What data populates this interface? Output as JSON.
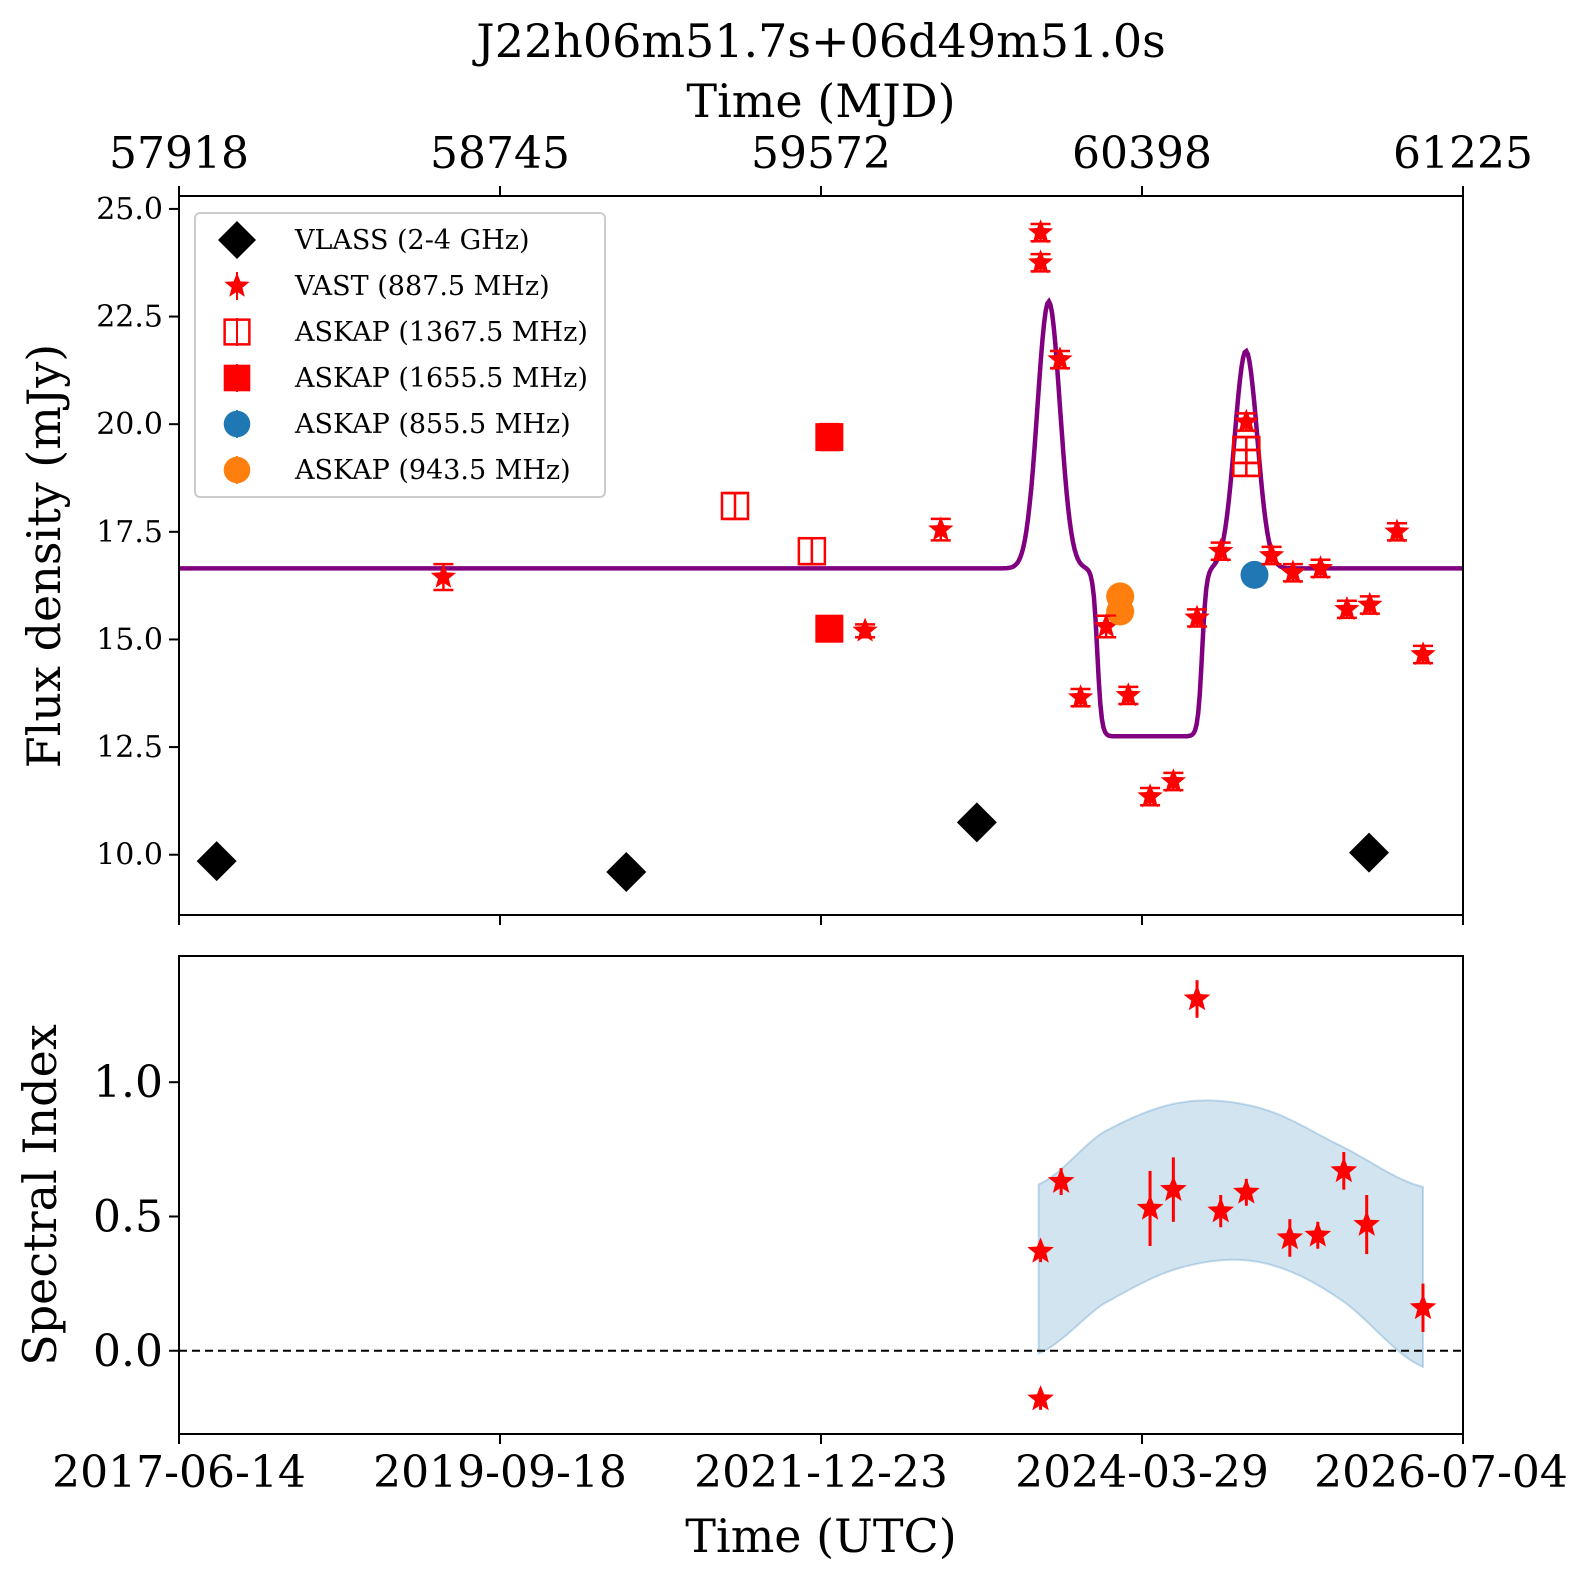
{
  "figure": {
    "title": "J22h06m51.7s+06d49m51.0s",
    "top_axis_label": "Time (MJD)",
    "top_ticks": [
      "57918",
      "58745",
      "59572",
      "60398",
      "61225"
    ],
    "bottom_axis_label": "Time (UTC)",
    "bottom_ticks": [
      "2017-06-14",
      "2019-09-18",
      "2021-12-23",
      "2024-03-29",
      "2026-07-04"
    ]
  },
  "chart_data": [
    {
      "type": "scatter",
      "panel": "top",
      "ylabel": "Flux density (mJy)",
      "xlabel": "Time (MJD)",
      "xlim": [
        57918,
        61225
      ],
      "ylim": [
        8.6,
        25.3
      ],
      "yticks": [
        "10.0",
        "12.5",
        "15.0",
        "17.5",
        "20.0",
        "22.5",
        "25.0"
      ],
      "legend": {
        "position": "top-left",
        "entries": [
          {
            "label": "VLASS (2-4 GHz)",
            "marker": "diamond",
            "color": "#000000"
          },
          {
            "label": "VAST (887.5 MHz)",
            "marker": "star",
            "color": "#ff0000"
          },
          {
            "label": "ASKAP (1367.5 MHz)",
            "marker": "open-square",
            "color": "#ff0000"
          },
          {
            "label": "ASKAP (1655.5 MHz)",
            "marker": "square",
            "color": "#ff0000"
          },
          {
            "label": "ASKAP (855.5 MHz)",
            "marker": "circle",
            "color": "#1f77b4"
          },
          {
            "label": "ASKAP (943.5 MHz)",
            "marker": "circle",
            "color": "#ff7f0e"
          }
        ]
      },
      "series": [
        {
          "name": "VLASS (2-4 GHz)",
          "marker": "diamond",
          "color": "#000000",
          "points": [
            {
              "x": 58015,
              "y": 9.85
            },
            {
              "x": 59070,
              "y": 9.6
            },
            {
              "x": 59973,
              "y": 10.75
            },
            {
              "x": 60983,
              "y": 10.05
            }
          ]
        },
        {
          "name": "VAST (887.5 MHz)",
          "marker": "star",
          "color": "#ff0000",
          "points": [
            {
              "x": 58599,
              "y": 16.45,
              "err": 0.3
            },
            {
              "x": 59685,
              "y": 15.2,
              "err": 0.15
            },
            {
              "x": 59880,
              "y": 17.55,
              "err": 0.25
            },
            {
              "x": 60137,
              "y": 24.45,
              "err": 0.2
            },
            {
              "x": 60137,
              "y": 23.75,
              "err": 0.2
            },
            {
              "x": 60187,
              "y": 21.5,
              "err": 0.2
            },
            {
              "x": 60240,
              "y": 13.65,
              "err": 0.2
            },
            {
              "x": 60306,
              "y": 15.3,
              "err": 0.25
            },
            {
              "x": 60363,
              "y": 13.7,
              "err": 0.2
            },
            {
              "x": 60419,
              "y": 11.35,
              "err": 0.2
            },
            {
              "x": 60479,
              "y": 11.7,
              "err": 0.2
            },
            {
              "x": 60540,
              "y": 15.5,
              "err": 0.2
            },
            {
              "x": 60601,
              "y": 17.05,
              "err": 0.2
            },
            {
              "x": 60667,
              "y": 20.05,
              "err": 0.2
            },
            {
              "x": 60732,
              "y": 16.95,
              "err": 0.2
            },
            {
              "x": 60787,
              "y": 16.55,
              "err": 0.2
            },
            {
              "x": 60858,
              "y": 16.65,
              "err": 0.2
            },
            {
              "x": 60926,
              "y": 15.7,
              "err": 0.2
            },
            {
              "x": 60985,
              "y": 15.8,
              "err": 0.2
            },
            {
              "x": 61055,
              "y": 17.5,
              "err": 0.2
            },
            {
              "x": 61122,
              "y": 14.65,
              "err": 0.2
            }
          ]
        },
        {
          "name": "ASKAP (1367.5 MHz)",
          "marker": "open-square",
          "color": "#ff0000",
          "points": [
            {
              "x": 59350,
              "y": 18.1,
              "err": 0.3
            },
            {
              "x": 59548,
              "y": 17.05,
              "err": 0.3
            },
            {
              "x": 60667,
              "y": 19.4,
              "err": 0.3
            },
            {
              "x": 60667,
              "y": 19.1,
              "err": 0.3
            }
          ]
        },
        {
          "name": "ASKAP (1655.5 MHz)",
          "marker": "square",
          "color": "#ff0000",
          "points": [
            {
              "x": 59593,
              "y": 19.7,
              "err": 0.3
            },
            {
              "x": 59593,
              "y": 15.25,
              "err": 0.2
            }
          ]
        },
        {
          "name": "ASKAP (855.5 MHz)",
          "marker": "circle",
          "color": "#1f77b4",
          "points": [
            {
              "x": 60688,
              "y": 16.5,
              "err": 0.15
            }
          ]
        },
        {
          "name": "ASKAP (943.5 MHz)",
          "marker": "circle",
          "color": "#ff7f0e",
          "points": [
            {
              "x": 60342,
              "y": 15.65,
              "err": 0.15
            },
            {
              "x": 60342,
              "y": 16.0,
              "err": 0.15
            }
          ]
        }
      ],
      "model_curve": {
        "color": "#800080",
        "baseline": 16.65,
        "components": [
          {
            "center": 60158,
            "width": 29,
            "amplitude": 6.2
          },
          {
            "center": 60666,
            "width": 29,
            "amplitude": 5.05
          },
          {
            "center": 60418,
            "half_width": 135,
            "edge": 22,
            "amplitude": -3.9
          }
        ]
      }
    },
    {
      "type": "scatter",
      "panel": "bottom",
      "ylabel": "Spectral Index",
      "xlabel": "Time (UTC)",
      "xlim": [
        57918,
        61225
      ],
      "ylim": [
        -0.31,
        1.47
      ],
      "yticks": [
        "0.0",
        "0.5",
        "1.0"
      ],
      "reference_line": {
        "y": 0.0,
        "style": "dashed",
        "color": "#000000"
      },
      "band": {
        "color": "#1f77b4",
        "opacity": 0.2,
        "x": [
          60132,
          60300,
          60500,
          60700,
          60900,
          61122
        ],
        "upper": [
          0.62,
          0.815,
          0.925,
          0.905,
          0.77,
          0.61
        ],
        "lower": [
          -0.01,
          0.175,
          0.31,
          0.33,
          0.2,
          -0.06
        ]
      },
      "series": [
        {
          "name": "",
          "marker": "star",
          "color": "#ff0000",
          "points": [
            {
              "x": 60137,
              "y": 0.37,
              "err": 0.04
            },
            {
              "x": 60137,
              "y": -0.18,
              "err": 0.04
            },
            {
              "x": 60190,
              "y": 0.63,
              "err": 0.05
            },
            {
              "x": 60419,
              "y": 0.53,
              "err": 0.14
            },
            {
              "x": 60479,
              "y": 0.6,
              "err": 0.12
            },
            {
              "x": 60540,
              "y": 1.31,
              "err": 0.07
            },
            {
              "x": 60601,
              "y": 0.52,
              "err": 0.06
            },
            {
              "x": 60667,
              "y": 0.59,
              "err": 0.05
            },
            {
              "x": 60779,
              "y": 0.42,
              "err": 0.07
            },
            {
              "x": 60851,
              "y": 0.43,
              "err": 0.05
            },
            {
              "x": 60918,
              "y": 0.67,
              "err": 0.07
            },
            {
              "x": 60977,
              "y": 0.47,
              "err": 0.11
            },
            {
              "x": 61122,
              "y": 0.16,
              "err": 0.09
            }
          ]
        }
      ]
    }
  ]
}
